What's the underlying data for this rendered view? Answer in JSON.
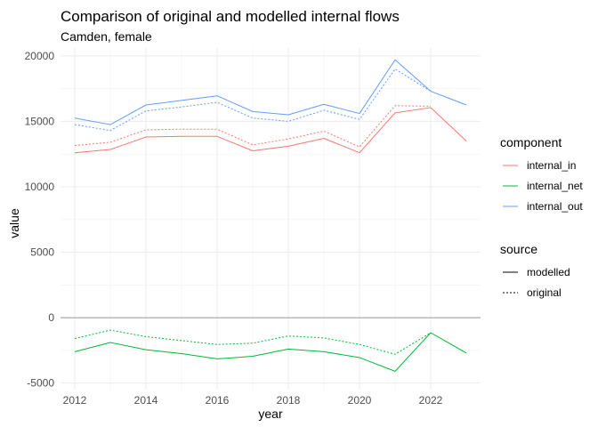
{
  "chart_data": {
    "type": "line",
    "title": "Comparison of original and modelled internal flows",
    "subtitle": "Camden, female",
    "xlabel": "year",
    "ylabel": "value",
    "xlim": [
      2011.6,
      2023.4
    ],
    "ylim": [
      -5500,
      20600
    ],
    "x_ticks": [
      2012,
      2014,
      2016,
      2018,
      2020,
      2022
    ],
    "y_ticks": [
      -5000,
      0,
      5000,
      10000,
      15000,
      20000
    ],
    "x_tick_labels": [
      "2012",
      "2014",
      "2016",
      "2018",
      "2020",
      "2022"
    ],
    "y_tick_labels": [
      "-5000",
      "0",
      "5000",
      "10000",
      "15000",
      "20000"
    ],
    "grid": true,
    "zero_line": true,
    "legend_position": "right",
    "legend": {
      "component_title": "component",
      "source_title": "source",
      "components": [
        {
          "name": "internal_in",
          "color": "#F8766D"
        },
        {
          "name": "internal_net",
          "color": "#00BA38"
        },
        {
          "name": "internal_out",
          "color": "#619CFF"
        }
      ],
      "sources": [
        {
          "name": "modelled",
          "dash": "solid"
        },
        {
          "name": "original",
          "dash": "dotted"
        }
      ]
    },
    "x": [
      2012,
      2013,
      2014,
      2015,
      2016,
      2017,
      2018,
      2019,
      2020,
      2021,
      2022,
      2023
    ],
    "series": [
      {
        "component": "internal_in",
        "source": "modelled",
        "color": "#F8766D",
        "dash": "solid",
        "values": [
          12600,
          12850,
          13800,
          13850,
          13850,
          12750,
          13100,
          13700,
          12600,
          15650,
          16050,
          13500
        ]
      },
      {
        "component": "internal_in",
        "source": "original",
        "color": "#F8766D",
        "dash": "dotted",
        "values": [
          13150,
          13400,
          14350,
          14400,
          14400,
          13200,
          13650,
          14250,
          13050,
          16200,
          16150,
          null
        ]
      },
      {
        "component": "internal_net",
        "source": "modelled",
        "color": "#00BA38",
        "dash": "solid",
        "values": [
          -2600,
          -1900,
          -2450,
          -2750,
          -3150,
          -2950,
          -2400,
          -2600,
          -3050,
          -4100,
          -1150,
          -2700
        ]
      },
      {
        "component": "internal_net",
        "source": "original",
        "color": "#00BA38",
        "dash": "dotted",
        "values": [
          -1600,
          -950,
          -1450,
          -1750,
          -2050,
          -1950,
          -1400,
          -1550,
          -2050,
          -2800,
          -1150,
          null
        ]
      },
      {
        "component": "internal_out",
        "source": "modelled",
        "color": "#619CFF",
        "dash": "solid",
        "values": [
          15250,
          14750,
          16250,
          16600,
          16950,
          15750,
          15500,
          16300,
          15600,
          19700,
          17300,
          16250
        ]
      },
      {
        "component": "internal_out",
        "source": "original",
        "color": "#619CFF",
        "dash": "dotted",
        "values": [
          14750,
          14300,
          15800,
          16100,
          16450,
          15250,
          15000,
          15850,
          15150,
          19000,
          17300,
          null
        ]
      }
    ]
  }
}
